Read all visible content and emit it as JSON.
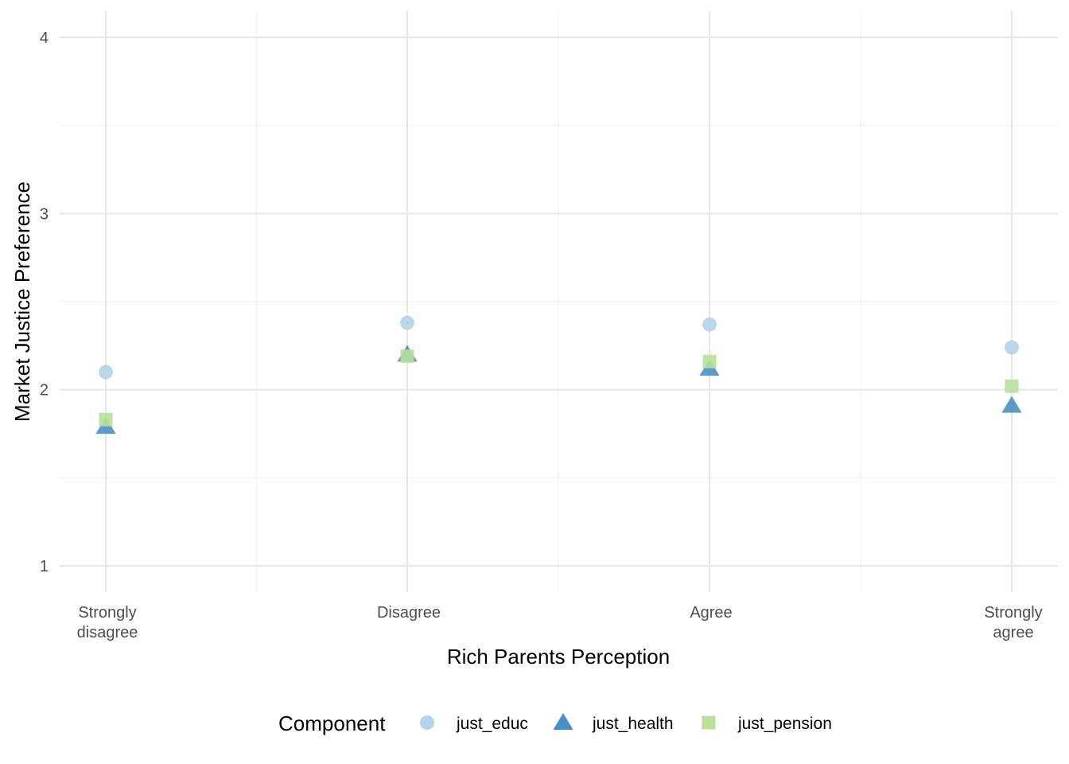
{
  "chart_data": {
    "type": "scatter",
    "xlabel": "Rich Parents Perception",
    "ylabel": "Market Justice Preference",
    "categories": [
      [
        "Strongly",
        "disagree"
      ],
      [
        "Disagree"
      ],
      [
        "Agree"
      ],
      [
        "Strongly",
        "agree"
      ]
    ],
    "ylim": [
      0.85,
      4.1
    ],
    "yticks": [
      1,
      2,
      3,
      4
    ],
    "y_minor_ticks": [
      1.5,
      2.5,
      3.5
    ],
    "grid": true,
    "legend": {
      "title": "Component",
      "position": "bottom"
    },
    "series": [
      {
        "name": "just_educ",
        "shape": "circle",
        "color": "#b3d4e8",
        "values": [
          2.1,
          2.38,
          2.37,
          2.24
        ]
      },
      {
        "name": "just_health",
        "shape": "triangle",
        "color": "#4a90c4",
        "values": [
          1.79,
          2.2,
          2.12,
          1.91
        ]
      },
      {
        "name": "just_pension",
        "shape": "square",
        "color": "#b8e09a",
        "values": [
          1.83,
          2.19,
          2.16,
          2.02
        ]
      }
    ]
  }
}
